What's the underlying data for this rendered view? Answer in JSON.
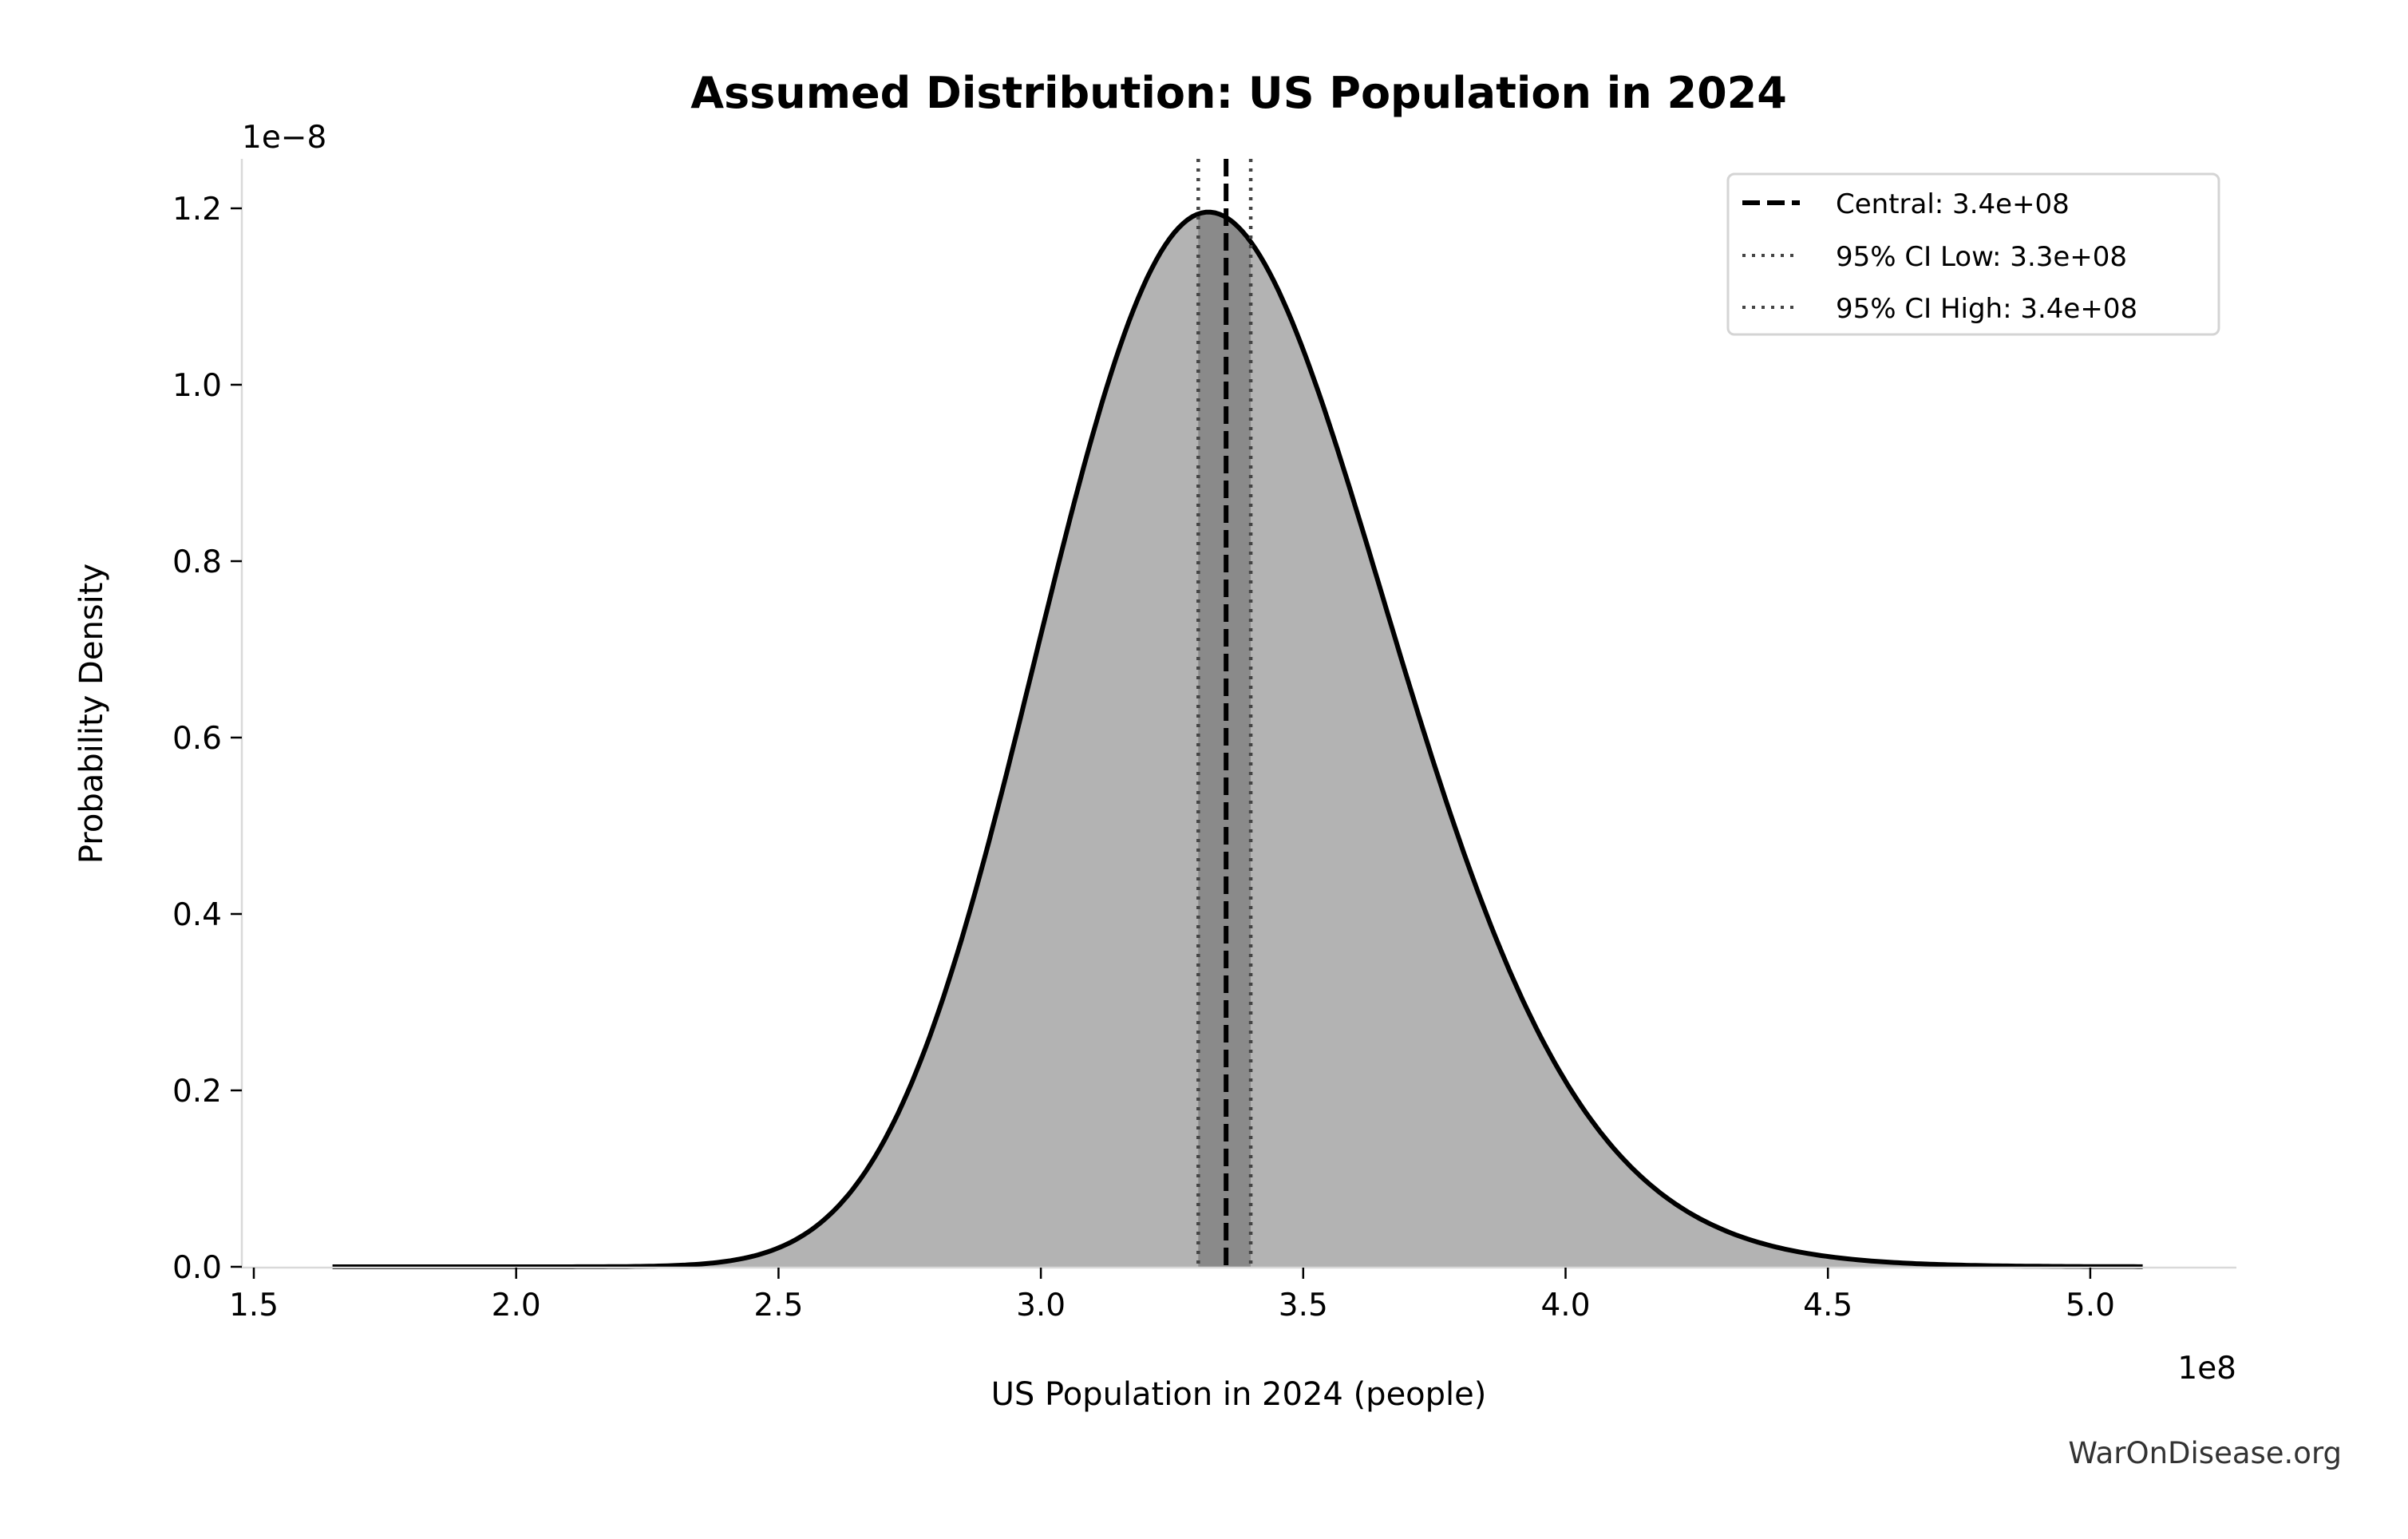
{
  "chart_data": {
    "type": "area",
    "title": "Assumed Distribution: US Population in 2024",
    "xlabel": "US Population in 2024 (people)",
    "ylabel": "Probability Density",
    "x_offset_label": "1e8",
    "y_offset_label": "1e−8",
    "xlim": [
      148000000.0,
      528000000.0
    ],
    "ylim": [
      0,
      1.26e-08
    ],
    "x_ticks": [
      150000000.0,
      200000000.0,
      250000000.0,
      300000000.0,
      350000000.0,
      400000000.0,
      450000000.0,
      500000000.0
    ],
    "x_tick_labels": [
      "1.5",
      "2.0",
      "2.5",
      "3.0",
      "3.5",
      "4.0",
      "4.5",
      "5.0"
    ],
    "y_ticks": [
      0,
      2e-09,
      4e-09,
      6e-09,
      8e-09,
      1e-08,
      1.2e-08
    ],
    "y_tick_labels": [
      "0.0",
      "0.2",
      "0.4",
      "0.6",
      "0.8",
      "1.0",
      "1.2"
    ],
    "grid": false,
    "legend_position": "top-right",
    "distribution": {
      "family": "lognormal",
      "median": 335300000.0,
      "sigma_log": 0.1,
      "x_range": [
        165000000.0,
        510000000.0
      ]
    },
    "series": [
      {
        "x": [
          165000000.0,
          200000000.0,
          225000000.0,
          250000000.0,
          275000000.0,
          300000000.0,
          320000000.0,
          332000000.0,
          335000000.0,
          350000000.0,
          375000000.0,
          400000000.0,
          425000000.0,
          450000000.0,
          475000000.0,
          510000000.0
        ],
        "y": [
          0,
          0,
          6e-12,
          2.15e-10,
          2.035e-09,
          7.17e-09,
          1.118e-08,
          1.2e-08,
          1.191e-08,
          1.04e-08,
          5.69e-09,
          2.1e-09,
          5.64e-10,
          1.17e-10,
          2e-11,
          1e-12
        ]
      }
    ],
    "ci_band": [
      330000000.0,
      340000000.0
    ],
    "reference_lines": [
      {
        "name": "Central: 3.4e+08",
        "x": 335300000.0,
        "style": "dashed",
        "color": "#000000"
      },
      {
        "name": "95% CI Low: 3.3e+08",
        "x": 330000000.0,
        "style": "dotted",
        "color": "#444444"
      },
      {
        "name": "95% CI High: 3.4e+08",
        "x": 340000000.0,
        "style": "dotted",
        "color": "#444444"
      }
    ],
    "colors": {
      "fill": "#b3b3b3",
      "ci_fill": "#8a8a8a",
      "curve": "#000000",
      "spine": "#d9d9d9"
    }
  },
  "watermark": "WarOnDisease.org"
}
